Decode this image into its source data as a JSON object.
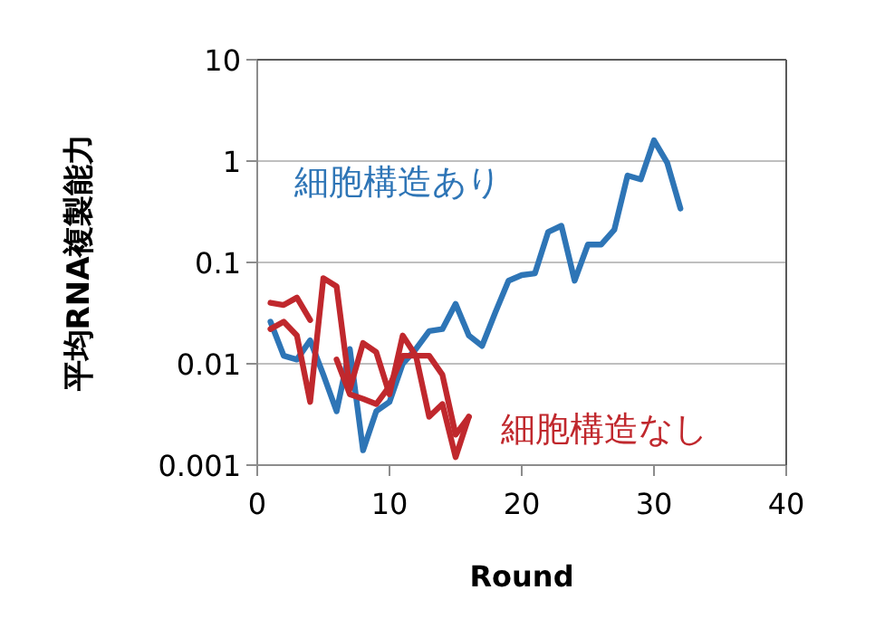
{
  "chart_data": {
    "type": "line",
    "xlabel": "Round",
    "ylabel": "平均RNA複製能力",
    "log": "y",
    "xlim": [
      0,
      40
    ],
    "xticks": [
      0,
      10,
      20,
      30,
      40
    ],
    "ylim": [
      0.001,
      10
    ],
    "yticks": [
      0.001,
      0.01,
      0.1,
      1,
      10
    ],
    "grid": "y",
    "legend": false,
    "marker": "none",
    "line_style": "solid",
    "series": [
      {
        "name": "細胞構造あり",
        "color": "#2e75b6",
        "x": [
          1,
          2,
          3,
          4,
          5,
          6,
          7,
          8,
          9,
          10,
          11,
          12,
          13,
          14,
          15,
          16,
          17,
          18,
          19,
          20,
          21,
          22,
          23,
          24,
          25,
          26,
          27,
          28,
          29,
          30,
          31,
          32
        ],
        "values": [
          0.026,
          0.012,
          0.011,
          0.017,
          0.0078,
          0.0034,
          0.014,
          0.0014,
          0.0034,
          0.0042,
          0.01,
          0.014,
          0.021,
          0.022,
          0.039,
          0.019,
          0.015,
          0.032,
          0.066,
          0.075,
          0.078,
          0.2,
          0.23,
          0.066,
          0.15,
          0.15,
          0.21,
          0.72,
          0.66,
          1.6,
          0.96,
          0.34
        ]
      },
      {
        "name": "細胞構造なし",
        "color": "#c0282d",
        "x": [
          1,
          2,
          3,
          4,
          5,
          6,
          7,
          8,
          9,
          10,
          11,
          12,
          13,
          14,
          15,
          16
        ],
        "values": [
          0.022,
          0.026,
          0.019,
          0.0042,
          0.07,
          0.058,
          0.0056,
          0.016,
          0.013,
          0.005,
          0.019,
          0.012,
          0.012,
          0.0078,
          0.002,
          0.003
        ]
      },
      {
        "color": "#c0282d",
        "x": [
          1,
          2,
          3,
          4
        ],
        "values": [
          0.04,
          0.038,
          0.045,
          0.027
        ]
      },
      {
        "color": "#c0282d",
        "x": [
          6,
          7,
          8,
          9,
          10,
          11,
          12,
          13,
          14,
          15,
          16
        ],
        "values": [
          0.011,
          0.005,
          0.0045,
          0.004,
          0.006,
          0.012,
          0.012,
          0.003,
          0.004,
          0.0012,
          0.003
        ]
      }
    ]
  }
}
